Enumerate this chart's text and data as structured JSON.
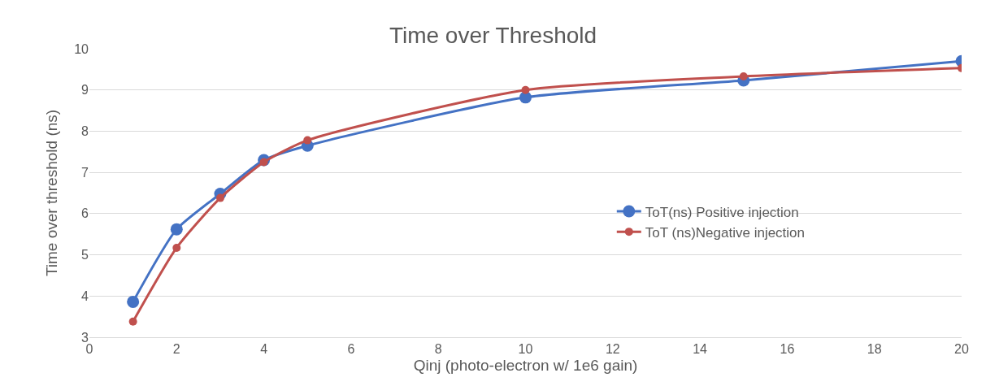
{
  "chart_data": {
    "type": "line",
    "title": "Time over Threshold",
    "xlabel": "Qinj (photo-electron w/ 1e6 gain)",
    "ylabel": "Time over threshold (ns)",
    "x": [
      1,
      2,
      3,
      4,
      5,
      10,
      15,
      20
    ],
    "series": [
      {
        "name": "ToT(ns) Positive injection",
        "color": "#4472c4",
        "values": [
          3.86,
          5.62,
          6.48,
          7.3,
          7.65,
          8.82,
          9.23,
          9.7
        ]
      },
      {
        "name": "ToT (ns)Negative injection",
        "color": "#c0504d",
        "values": [
          3.38,
          5.17,
          6.38,
          7.25,
          7.78,
          9.0,
          9.33,
          9.53
        ]
      }
    ],
    "xlim": [
      0,
      20
    ],
    "xticks": [
      0,
      2,
      4,
      6,
      8,
      10,
      12,
      14,
      16,
      18,
      20
    ],
    "ylim": [
      3,
      10
    ],
    "yticks": [
      3,
      4,
      5,
      6,
      7,
      8,
      9,
      10
    ],
    "grid": "y",
    "legend": "right",
    "marker": "circle",
    "line_style": "solid"
  }
}
